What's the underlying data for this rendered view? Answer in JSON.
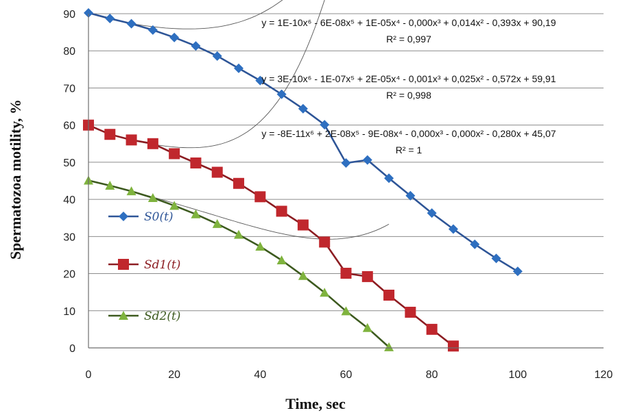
{
  "chart_data": {
    "type": "line",
    "xlabel": "Time, sec",
    "ylabel": "Spermatozoa motility, %",
    "xlim": [
      0,
      120
    ],
    "ylim": [
      0,
      90
    ],
    "xticks": [
      "0",
      "20",
      "40",
      "60",
      "80",
      "100",
      "120"
    ],
    "yticks": [
      "0",
      "10",
      "20",
      "30",
      "40",
      "50",
      "60",
      "70",
      "80",
      "90"
    ],
    "grid": "horizontal",
    "series": [
      {
        "name": "S0(t)",
        "marker": "diamond",
        "color": "#2e6fc0",
        "x": [
          0,
          5,
          10,
          15,
          20,
          25,
          30,
          35,
          40,
          45,
          50,
          55,
          60,
          65,
          70,
          75,
          80,
          85,
          90,
          95,
          100
        ],
        "y": [
          90.2,
          88.7,
          87.3,
          85.6,
          83.6,
          81.3,
          78.6,
          75.3,
          72.0,
          68.3,
          64.4,
          60.1,
          49.8,
          50.6,
          45.7,
          41.0,
          36.3,
          32.0,
          27.9,
          24.1,
          20.6
        ]
      },
      {
        "name": "Sd1(t)",
        "marker": "square",
        "color": "#c0272d",
        "x": [
          0,
          5,
          10,
          15,
          20,
          25,
          30,
          35,
          40,
          45,
          50,
          55,
          60,
          65,
          70,
          75,
          80,
          85
        ],
        "y": [
          60.0,
          57.5,
          56.0,
          55.0,
          52.3,
          49.8,
          47.3,
          44.3,
          40.7,
          36.8,
          33.1,
          28.5,
          20.1,
          19.2,
          14.2,
          9.6,
          5.0,
          0.5
        ]
      },
      {
        "name": "Sd2(t)",
        "marker": "triangle",
        "color": "#7fb33e",
        "x": [
          0,
          5,
          10,
          15,
          20,
          25,
          30,
          35,
          40,
          45,
          50,
          55,
          60,
          65,
          70
        ],
        "y": [
          45.1,
          43.7,
          42.2,
          40.4,
          38.3,
          36.0,
          33.4,
          30.5,
          27.3,
          23.6,
          19.4,
          14.9,
          9.9,
          5.4,
          0.2
        ]
      }
    ],
    "trendlines": [
      {
        "equation": "y = 1E-10x⁶ - 6E-08x⁵ + 1E-05x⁴ - 0,000x³ + 0,014x² - 0,393x + 90,19",
        "r2": "R² = 0,997"
      },
      {
        "equation": "y = 3E-10x⁶ - 1E-07x⁵ + 2E-05x⁴ - 0,001x³ + 0,025x² - 0,572x + 59,91",
        "r2": "R² = 0,998"
      },
      {
        "equation": "y = -8E-11x⁶ + 2E-08x⁵ - 9E-08x⁴ - 0,000x³ - 0,000x² - 0,280x + 45,07",
        "r2": "R² = 1"
      }
    ],
    "legend": [
      {
        "label": "S0(t)",
        "marker": "diamond",
        "color": "#2e6fc0",
        "line": "#2e5597"
      },
      {
        "label": "Sd1(t)",
        "marker": "square",
        "color": "#c0272d",
        "line": "#8c1d22"
      },
      {
        "label": "Sd2(t)",
        "marker": "triangle",
        "color": "#7fb33e",
        "line": "#3d5a1f"
      }
    ]
  }
}
